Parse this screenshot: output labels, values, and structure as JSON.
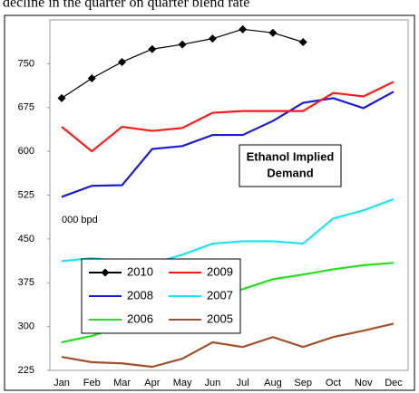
{
  "caption": "decline in the quarter on quarter blend rate",
  "chart_data": {
    "type": "line",
    "categories": [
      "Jan",
      "Feb",
      "Mar",
      "Apr",
      "May",
      "Jun",
      "Jul",
      "Aug",
      "Sep",
      "Oct",
      "Nov",
      "Dec"
    ],
    "series": [
      {
        "name": "2010",
        "color": "#000000",
        "marker": "diamond",
        "values": [
          691,
          725,
          753,
          775,
          783,
          793,
          809,
          803,
          787,
          null,
          null,
          null
        ]
      },
      {
        "name": "2009",
        "color": "#ff1a1a",
        "values": [
          642,
          600,
          642,
          635,
          640,
          666,
          669,
          669,
          669,
          700,
          694,
          719
        ]
      },
      {
        "name": "2008",
        "color": "#1a1ad9",
        "values": [
          522,
          541,
          542,
          604,
          609,
          628,
          628,
          652,
          683,
          691,
          674,
          702
        ]
      },
      {
        "name": "2007",
        "color": "#1ae6f0",
        "values": [
          412,
          417,
          412,
          408,
          423,
          442,
          446,
          446,
          442,
          485,
          499,
          518
        ]
      },
      {
        "name": "2006",
        "color": "#22e01a",
        "values": [
          273,
          284,
          300,
          320,
          335,
          350,
          364,
          381,
          389,
          398,
          405,
          409
        ]
      },
      {
        "name": "2005",
        "color": "#a0522d",
        "values": [
          248,
          239,
          237,
          231,
          245,
          273,
          265,
          282,
          265,
          282,
          293,
          305
        ]
      }
    ],
    "ylim": [
      225,
      825
    ],
    "yticks": [
      225,
      300,
      375,
      450,
      525,
      600,
      675,
      750
    ],
    "annotation_box": [
      "Ethanol Implied",
      "Demand"
    ],
    "unit_label": "000 bpd"
  }
}
